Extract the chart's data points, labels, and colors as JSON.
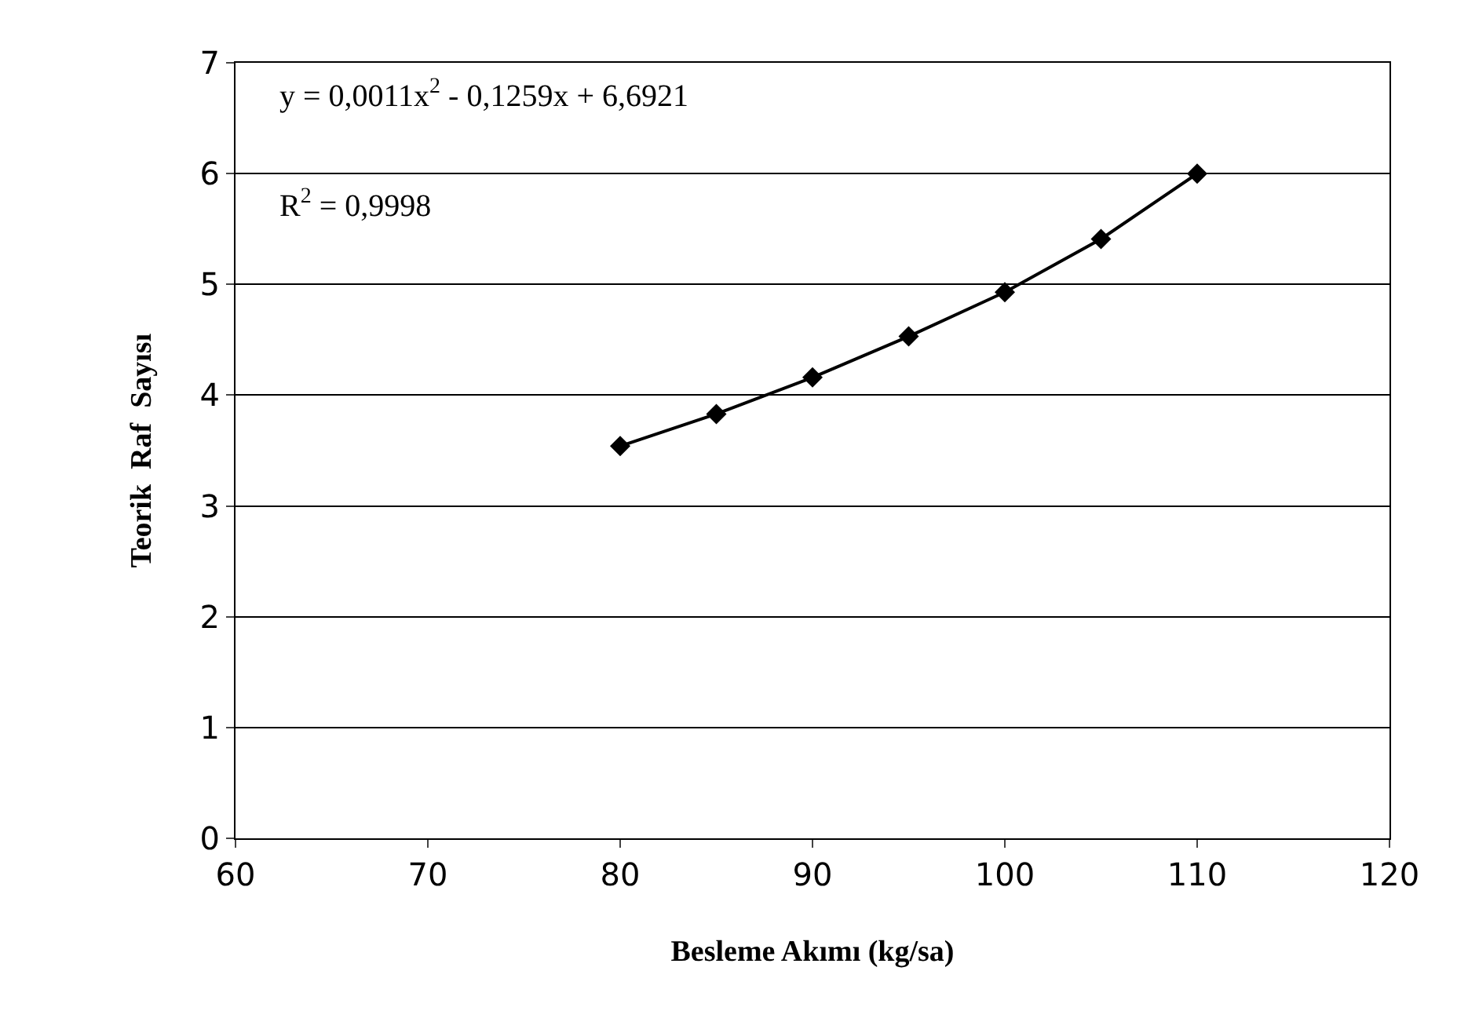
{
  "chart_data": {
    "type": "line",
    "xlabel": "Besleme Akımı (kg/sa)",
    "ylabel": "Teorik  Raf  Sayısı",
    "x": [
      80,
      85,
      90,
      95,
      100,
      105,
      110
    ],
    "series": [
      {
        "color": "#000000",
        "values": [
          3.54,
          3.83,
          4.16,
          4.53,
          4.93,
          5.41,
          6.0
        ]
      }
    ],
    "xlim": [
      60,
      120
    ],
    "xticks": [
      60,
      70,
      80,
      90,
      100,
      110,
      120
    ],
    "ylim": [
      0,
      7
    ],
    "yticks": [
      0,
      1,
      2,
      3,
      4,
      5,
      6,
      7
    ],
    "grid": "y",
    "marker": "diamond",
    "line_style": "solid",
    "annotations": [
      "y = 0,0011x$^{2}$ - 0,1259x + 6,6921",
      "R$^{2}$ = 0,9998"
    ]
  }
}
